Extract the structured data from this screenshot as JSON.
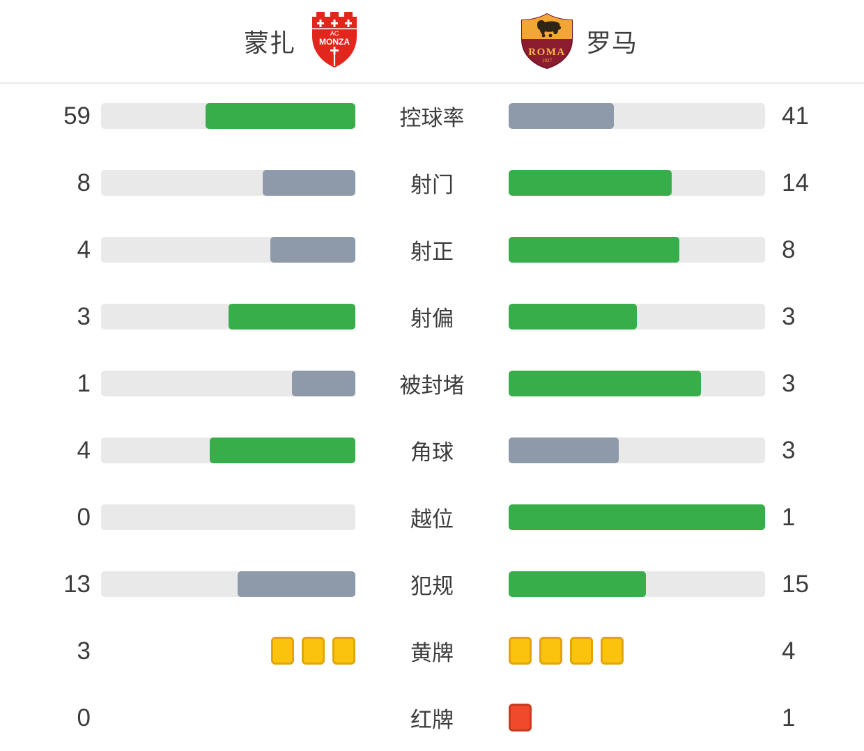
{
  "header": {
    "home": {
      "name": "蒙扎",
      "crest_line1": "AC",
      "crest_line2": "MONZA"
    },
    "away": {
      "name": "罗马",
      "crest_line1": "ROMA",
      "crest_line2": "1927"
    }
  },
  "colors": {
    "green": "#38ae4a",
    "gray": "#8e99aa",
    "track": "#e9e9e9",
    "yellow_card_fill": "#fcc30e",
    "yellow_card_border": "#e2a50a",
    "red_card_fill": "#f04a2d",
    "red_card_border": "#c93a1f",
    "text": "#3c3c3c"
  },
  "chart_data": {
    "type": "bar",
    "orientation": "horizontal-paired",
    "legend_position": "top",
    "teams": [
      "蒙扎",
      "罗马"
    ],
    "rows": [
      {
        "label": "控球率",
        "home": 59,
        "away": 41,
        "style": "bar",
        "home_color": "green",
        "away_color": "gray"
      },
      {
        "label": "射门",
        "home": 8,
        "away": 14,
        "style": "bar",
        "home_color": "gray",
        "away_color": "green"
      },
      {
        "label": "射正",
        "home": 4,
        "away": 8,
        "style": "bar",
        "home_color": "gray",
        "away_color": "green"
      },
      {
        "label": "射偏",
        "home": 3,
        "away": 3,
        "style": "bar",
        "home_color": "green",
        "away_color": "green"
      },
      {
        "label": "被封堵",
        "home": 1,
        "away": 3,
        "style": "bar",
        "home_color": "gray",
        "away_color": "green"
      },
      {
        "label": "角球",
        "home": 4,
        "away": 3,
        "style": "bar",
        "home_color": "green",
        "away_color": "gray"
      },
      {
        "label": "越位",
        "home": 0,
        "away": 1,
        "style": "bar",
        "home_color": "gray",
        "away_color": "green"
      },
      {
        "label": "犯规",
        "home": 13,
        "away": 15,
        "style": "bar",
        "home_color": "gray",
        "away_color": "green"
      },
      {
        "label": "黄牌",
        "home": 3,
        "away": 4,
        "style": "cards",
        "card_color": "yellow"
      },
      {
        "label": "红牌",
        "home": 0,
        "away": 1,
        "style": "cards",
        "card_color": "red"
      }
    ]
  }
}
